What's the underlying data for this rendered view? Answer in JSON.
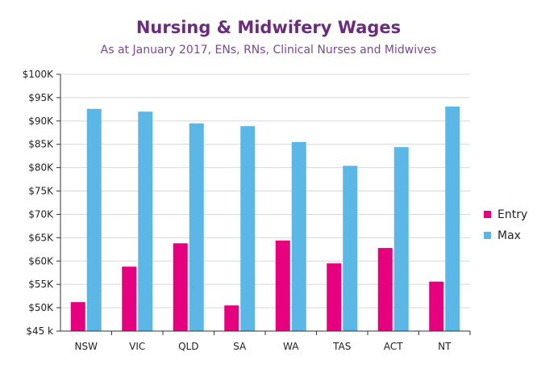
{
  "chart_data": {
    "type": "bar",
    "title": "Nursing & Midwifery Wages",
    "subtitle": "As at January 2017, ENs, RNs, Clinical Nurses and Midwives",
    "xlabel": "",
    "ylabel": "",
    "categories": [
      "NSW",
      "VIC",
      "QLD",
      "SA",
      "WA",
      "TAS",
      "ACT",
      "NT"
    ],
    "series": [
      {
        "name": "Entry",
        "color": "#e6007e",
        "values": [
          51200,
          58800,
          63800,
          50500,
          64400,
          59500,
          62800,
          55600
        ]
      },
      {
        "name": "Max",
        "color": "#5bb7e6",
        "values": [
          92600,
          92000,
          89500,
          88900,
          85500,
          80400,
          84400,
          93100
        ]
      }
    ],
    "ylim": [
      45000,
      100000
    ],
    "yticks": [
      45000,
      50000,
      55000,
      60000,
      65000,
      70000,
      75000,
      80000,
      85000,
      90000,
      95000,
      100000
    ],
    "ytick_labels": [
      "$45 k",
      "$50K",
      "$55K",
      "$60K",
      "$65K",
      "$70K",
      "$75K",
      "$80K",
      "$85K",
      "$90K",
      "$95K",
      "$100K"
    ],
    "grid": true,
    "legend_position": "right"
  }
}
